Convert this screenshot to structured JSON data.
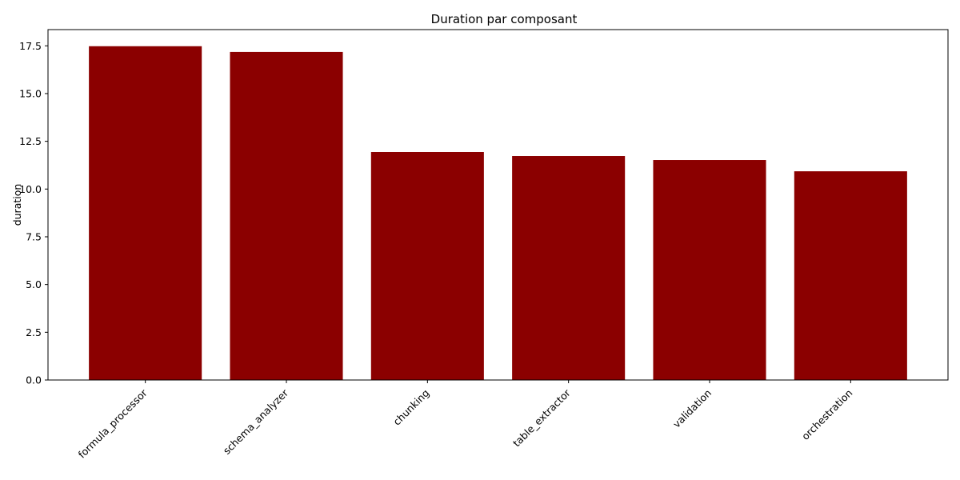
{
  "chart_data": {
    "type": "bar",
    "title": "Duration par composant",
    "xlabel": "",
    "ylabel": "duration",
    "categories": [
      "formula_processor",
      "schema_analyzer",
      "chunking",
      "table_extractor",
      "validation",
      "orchestration"
    ],
    "values": [
      17.48,
      17.18,
      11.94,
      11.73,
      11.52,
      10.93
    ],
    "ylim": [
      0,
      18.35
    ],
    "yticks": [
      0.0,
      2.5,
      5.0,
      7.5,
      10.0,
      12.5,
      15.0,
      17.5
    ],
    "ytick_labels": [
      "0.0",
      "2.5",
      "5.0",
      "7.5",
      "10.0",
      "12.5",
      "15.0",
      "17.5"
    ],
    "bar_color": "#8b0000",
    "grid": false,
    "legend": "none"
  }
}
